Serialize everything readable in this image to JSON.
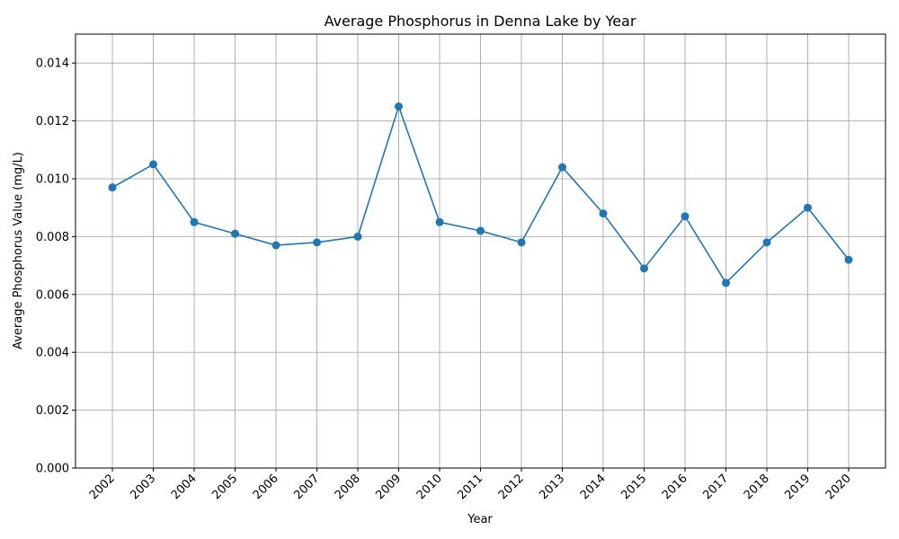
{
  "chart_data": {
    "type": "line",
    "title": "Average Phosphorus in Denna Lake by Year",
    "xlabel": "Year",
    "ylabel": "Average Phosphorus Value (mg/L)",
    "categories": [
      "2002",
      "2003",
      "2004",
      "2005",
      "2006",
      "2007",
      "2008",
      "2009",
      "2010",
      "2011",
      "2012",
      "2013",
      "2014",
      "2015",
      "2016",
      "2017",
      "2018",
      "2019",
      "2020"
    ],
    "series": [
      {
        "values": [
          0.0097,
          0.0105,
          0.0085,
          0.0081,
          0.0077,
          0.0078,
          0.008,
          0.0125,
          0.0085,
          0.0082,
          0.0078,
          0.0104,
          0.0088,
          0.0069,
          0.0087,
          0.0064,
          0.0078,
          0.009,
          0.0072
        ],
        "color": "#1f77b4",
        "marker": "circle"
      }
    ],
    "ylim": [
      0,
      0.015
    ],
    "yticks": [
      "0.000",
      "0.002",
      "0.004",
      "0.006",
      "0.008",
      "0.010",
      "0.012",
      "0.014"
    ],
    "ytick_values": [
      0,
      0.002,
      0.004,
      0.006,
      0.008,
      0.01,
      0.012,
      0.014
    ],
    "grid": true,
    "legend": "none"
  }
}
